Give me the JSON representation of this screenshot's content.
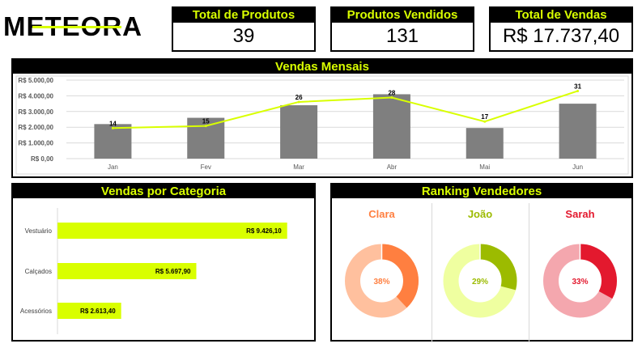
{
  "brand": {
    "logo_text": "METEORA"
  },
  "kpis": [
    {
      "label": "Total de Produtos",
      "value": "39"
    },
    {
      "label": "Produtos Vendidos",
      "value": "131"
    },
    {
      "label": "Total de Vendas",
      "value": "R$ 17.737,40"
    }
  ],
  "monthly": {
    "title": "Vendas Mensais",
    "chart_data": {
      "type": "bar",
      "categories": [
        "Jan",
        "Fev",
        "Mar",
        "Abr",
        "Mai",
        "Jun"
      ],
      "series": [
        {
          "values": [
            2200,
            2600,
            3400,
            4100,
            1950,
            3500
          ]
        },
        {
          "values": [
            14,
            15,
            26,
            28,
            17,
            31
          ]
        }
      ],
      "line_labels": [
        "14",
        "15",
        "26",
        "28",
        "17",
        "31"
      ],
      "y_ticks": [
        "R$ 0,00",
        "R$ 1.000,00",
        "R$ 2.000,00",
        "R$ 3.000,00",
        "R$ 4.000,00",
        "R$ 5.000,00"
      ],
      "ylim": [
        0,
        5000
      ],
      "line_ylim": [
        0,
        36
      ],
      "grid": true,
      "colors": {
        "bar": "#7f7f7f",
        "line": "#d9ff00"
      }
    }
  },
  "category": {
    "title": "Vendas por Categoria",
    "chart_data": {
      "type": "bar",
      "orientation": "horizontal",
      "categories": [
        "Vestuário",
        "Calçados",
        "Acessórios"
      ],
      "values": [
        9426.1,
        5697.9,
        2613.4
      ],
      "value_labels": [
        "R$ 9.426,10",
        "R$ 5.697,90",
        "R$ 2.613,40"
      ],
      "xlim": [
        0,
        10300
      ],
      "colors": {
        "bar": "#d9ff00"
      }
    }
  },
  "ranking": {
    "title": "Ranking Vendedores",
    "sellers": [
      {
        "name": "Clara",
        "percent": 38,
        "label": "38%",
        "main": "#ff7f40",
        "rest": "#ffc09e",
        "text": "#ff7f40"
      },
      {
        "name": "João",
        "percent": 29,
        "label": "29%",
        "main": "#9cbb00",
        "rest": "#efffa0",
        "text": "#9cbb00"
      },
      {
        "name": "Sarah",
        "percent": 33,
        "label": "33%",
        "main": "#e3192e",
        "rest": "#f4a7ae",
        "text": "#e3192e"
      }
    ]
  }
}
